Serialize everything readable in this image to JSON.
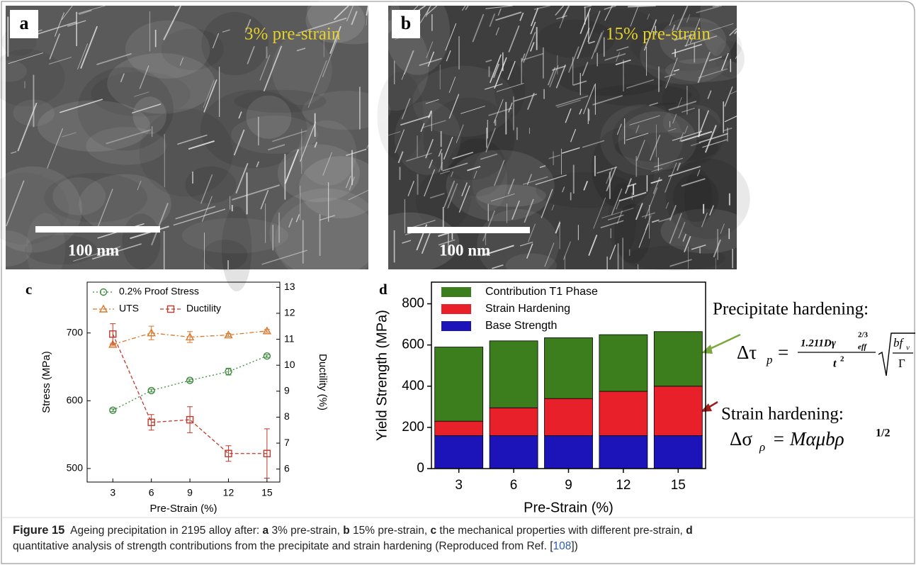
{
  "panels": [
    {
      "label": "a",
      "annotation": "3% pre-strain",
      "scale_bar": "100 nm"
    },
    {
      "label": "b",
      "annotation": "15% pre-strain",
      "scale_bar": "100 nm"
    }
  ],
  "chart_data": [
    {
      "type": "line",
      "panel_label": "c",
      "x_label": "Pre-Strain (%)",
      "y_label": "Stress (MPa)",
      "y2_label": "Ductility (%)",
      "x": [
        3,
        6,
        9,
        12,
        15
      ],
      "xlim": [
        1,
        16
      ],
      "xticks": [
        3,
        6,
        9,
        12,
        15
      ],
      "ylim": [
        480,
        775
      ],
      "yticks": [
        500,
        600,
        700
      ],
      "y2lim": [
        5.5,
        13.2
      ],
      "y2ticks": [
        6,
        7,
        8,
        9,
        10,
        11,
        12,
        13
      ],
      "legend": "top-left",
      "series": [
        {
          "name": "0.2% Proof Stress",
          "color": "#3d8a3d",
          "marker": "circle",
          "dash": "2,3",
          "values": [
            586,
            615,
            630,
            643,
            666
          ],
          "errors": [
            2,
            2,
            2,
            5,
            2
          ]
        },
        {
          "name": "UTS",
          "color": "#d9772a",
          "marker": "triangle",
          "dash": "6,3,2,3",
          "values": [
            683,
            700,
            694,
            697,
            703
          ],
          "errors": [
            2,
            10,
            8,
            2,
            2
          ]
        },
        {
          "name": "Ductility",
          "color": "#c0392b",
          "marker": "square",
          "dash": "5,3",
          "axis": "y2",
          "values": [
            11.2,
            7.8,
            7.9,
            6.6,
            6.6
          ],
          "errors": [
            0.4,
            0.3,
            0.5,
            0.3,
            0.95
          ]
        }
      ]
    },
    {
      "type": "bar",
      "stacked": true,
      "panel_label": "d",
      "x_label": "Pre-Strain (%)",
      "y_label": "Yield Strength (MPa)",
      "categories": [
        "3",
        "6",
        "9",
        "12",
        "15"
      ],
      "ylim": [
        0,
        905
      ],
      "yticks": [
        0,
        200,
        400,
        600,
        800
      ],
      "legend": "top-left",
      "series": [
        {
          "name": "Base Strength",
          "color": "#1c14b8",
          "values": [
            160,
            160,
            160,
            160,
            160
          ]
        },
        {
          "name": "Strain Hardening",
          "color": "#e8202a",
          "values": [
            70,
            135,
            180,
            215,
            240
          ]
        },
        {
          "name": "Contribution T1 Phase",
          "color": "#3c7d1e",
          "values": [
            360,
            325,
            295,
            275,
            265
          ]
        }
      ]
    }
  ],
  "formulas": {
    "precipitate_title": "Precipitate hardening:",
    "precipitate": {
      "lhs": "Δτ",
      "lhs_sub": "p",
      "equals": "=",
      "numerator": "1.211Dγ",
      "num_sup": "2/3",
      "num_sub": "eff",
      "denominator": "t",
      "den_sup": "2",
      "root_num": "bf",
      "root_num_sub": "v",
      "root_den": "Γ"
    },
    "strain_title": "Strain hardening:",
    "strain": {
      "lhs": "Δσ",
      "lhs_sub": "ρ",
      "rhs": "= Mαμbρ",
      "rhs_sup": "1/2"
    }
  },
  "caption": {
    "label": "Figure 15",
    "lines": [
      [
        {
          "text": "  Ageing precipitation in 2195 alloy after: ",
          "bold": false
        },
        {
          "text": "a",
          "bold": true
        },
        {
          "text": " 3% pre-strain, ",
          "bold": false
        },
        {
          "text": "b",
          "bold": true
        },
        {
          "text": " 15% pre-strain, ",
          "bold": false
        },
        {
          "text": "c",
          "bold": true
        },
        {
          "text": " the mechanical properties with different pre-strain, ",
          "bold": false
        },
        {
          "text": "d",
          "bold": true
        }
      ],
      [
        {
          "text": "quantitative analysis of strength contributions from the precipitate and strain hardening (Reproduced from Ref. [",
          "bold": false
        },
        {
          "text": "108",
          "bold": false,
          "link": true
        },
        {
          "text": "])",
          "bold": false
        }
      ]
    ]
  }
}
